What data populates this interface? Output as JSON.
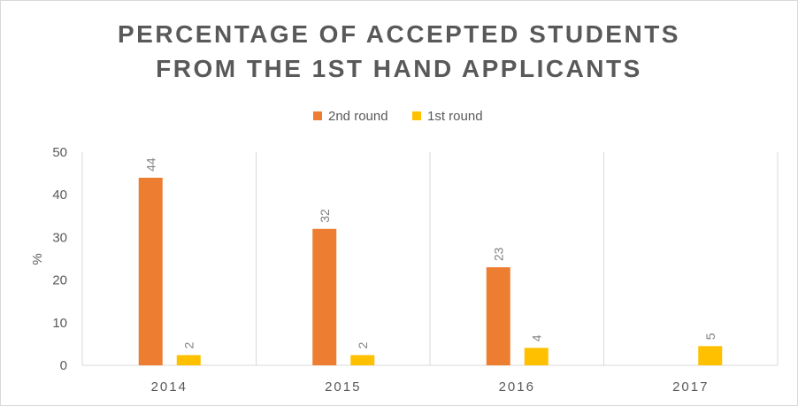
{
  "chart_data": {
    "type": "bar",
    "title_lines": [
      "PERCENTAGE OF ACCEPTED STUDENTS",
      "FROM THE 1ST HAND APPLICANTS"
    ],
    "xlabel": "",
    "ylabel": "%",
    "ylim": [
      0,
      50
    ],
    "yticks": [
      0,
      10,
      20,
      30,
      40,
      50
    ],
    "categories": [
      "2014",
      "2015",
      "2016",
      "2017"
    ],
    "series": [
      {
        "name": "2nd round",
        "color": "#ED7D31",
        "values": [
          44,
          32,
          23,
          null
        ],
        "labels": [
          "44",
          "32",
          "23",
          ""
        ]
      },
      {
        "name": "1st round",
        "color": "#FFC000",
        "values": [
          2.4,
          2.4,
          4.1,
          4.5
        ],
        "labels": [
          "2",
          "2",
          "4",
          "5"
        ]
      }
    ],
    "legend_position": "top",
    "grid": "vertical category separators",
    "data_labels": true
  }
}
